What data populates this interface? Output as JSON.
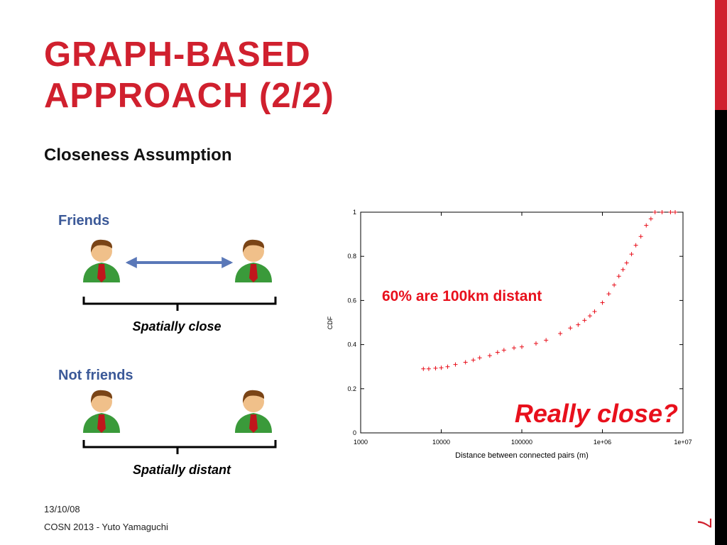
{
  "slide": {
    "title": "GRAPH-BASED APPROACH (2/2)",
    "subtitle": "Closeness Assumption",
    "groups": [
      {
        "label": "Friends",
        "caption": "Spatially close"
      },
      {
        "label": "Not friends",
        "caption": "Spatially distant"
      }
    ],
    "footer": {
      "date": "13/10/08",
      "source": "COSN 2013 - Yuto Yamaguchi"
    },
    "page": "7"
  },
  "chart_data": {
    "type": "scatter",
    "xlabel": "Distance between connected pairs (m)",
    "ylabel": "CDF",
    "annotations": [
      "60% are 100km distant",
      "Really close?"
    ],
    "color": "#e8101c",
    "xscale": "log",
    "x": [
      6000,
      7000,
      8500,
      10000,
      12000,
      15000,
      20000,
      25000,
      30000,
      40000,
      50000,
      60000,
      80000,
      100000,
      150000,
      200000,
      300000,
      400000,
      500000,
      600000,
      700000,
      800000,
      1000000,
      1200000,
      1400000,
      1600000,
      1800000,
      2000000,
      2300000,
      2600000,
      3000000,
      3500000,
      4000000,
      4500000,
      5500000,
      7000000,
      8000000
    ],
    "values": [
      0.29,
      0.29,
      0.293,
      0.295,
      0.3,
      0.31,
      0.32,
      0.33,
      0.34,
      0.35,
      0.365,
      0.375,
      0.385,
      0.39,
      0.405,
      0.42,
      0.45,
      0.475,
      0.49,
      0.51,
      0.53,
      0.55,
      0.59,
      0.63,
      0.67,
      0.71,
      0.74,
      0.77,
      0.81,
      0.85,
      0.89,
      0.94,
      0.97,
      1,
      1,
      1,
      1
    ],
    "xlim": [
      1000,
      10000000
    ],
    "xticks": [
      1000,
      10000,
      100000,
      {
        "value": 1000000,
        "label": "1e+06"
      },
      {
        "value": 10000000,
        "label": "1e+07"
      }
    ],
    "ylim": [
      0,
      1
    ],
    "yticks": [
      0,
      0.2,
      0.4,
      0.6,
      0.8,
      1
    ]
  }
}
